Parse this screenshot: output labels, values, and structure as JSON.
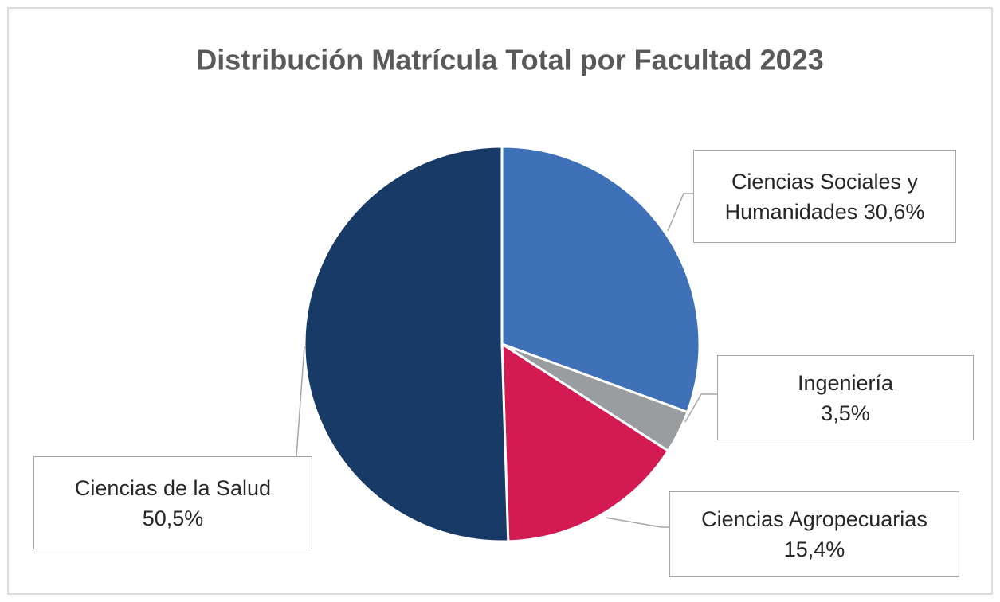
{
  "chart_data": {
    "type": "pie",
    "title": "Distribución Matrícula Total por Facultad 2023",
    "categories": [
      "Ciencias Sociales y Humanidades",
      "Ingeniería",
      "Ciencias Agropecuarias",
      "Ciencias de la Salud"
    ],
    "values": [
      30.6,
      3.5,
      15.4,
      50.5
    ],
    "value_labels": [
      "30,6%",
      "3,5%",
      "15,4%",
      "50,5%"
    ],
    "colors": [
      "#3e71b8",
      "#9a9da0",
      "#d41a52",
      "#183a66"
    ]
  }
}
